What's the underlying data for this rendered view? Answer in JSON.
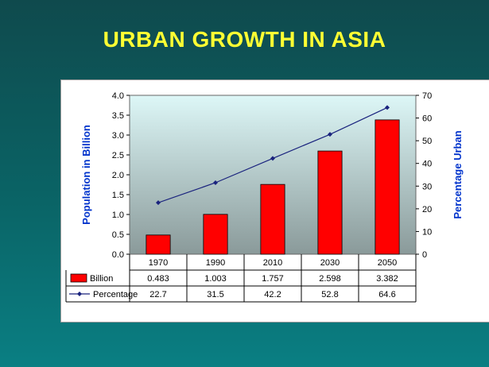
{
  "slide": {
    "title": "URBAN GROWTH IN ASIA"
  },
  "chart_data": {
    "type": "bar",
    "categories": [
      "1970",
      "1990",
      "2010",
      "2030",
      "2050"
    ],
    "series": [
      {
        "name": "Billion",
        "type": "bar",
        "axis": "left",
        "color": "#ff0000",
        "values": [
          0.483,
          1.003,
          1.757,
          2.598,
          3.382
        ],
        "labels": [
          "0.483",
          "1.003",
          "1.757",
          "2.598",
          "3.382"
        ]
      },
      {
        "name": "Percentage",
        "type": "line",
        "axis": "right",
        "color": "#1a237e",
        "values": [
          22.7,
          31.5,
          42.2,
          52.8,
          64.6
        ],
        "labels": [
          "22.7",
          "31.5",
          "42.2",
          "52.8",
          "64.6"
        ]
      }
    ],
    "ylabel": "Population in Billion",
    "y2label": "Percentage Urban",
    "ylim": [
      0,
      4.0
    ],
    "y2lim": [
      0,
      70
    ],
    "yticks": [
      "0.0",
      "0.5",
      "1.0",
      "1.5",
      "2.0",
      "2.5",
      "3.0",
      "3.5",
      "4.0"
    ],
    "y2ticks": [
      "0",
      "10",
      "20",
      "30",
      "40",
      "50",
      "60",
      "70"
    ],
    "data_table": true,
    "grid": false,
    "plot_background": "gradient light cyan to gray"
  }
}
